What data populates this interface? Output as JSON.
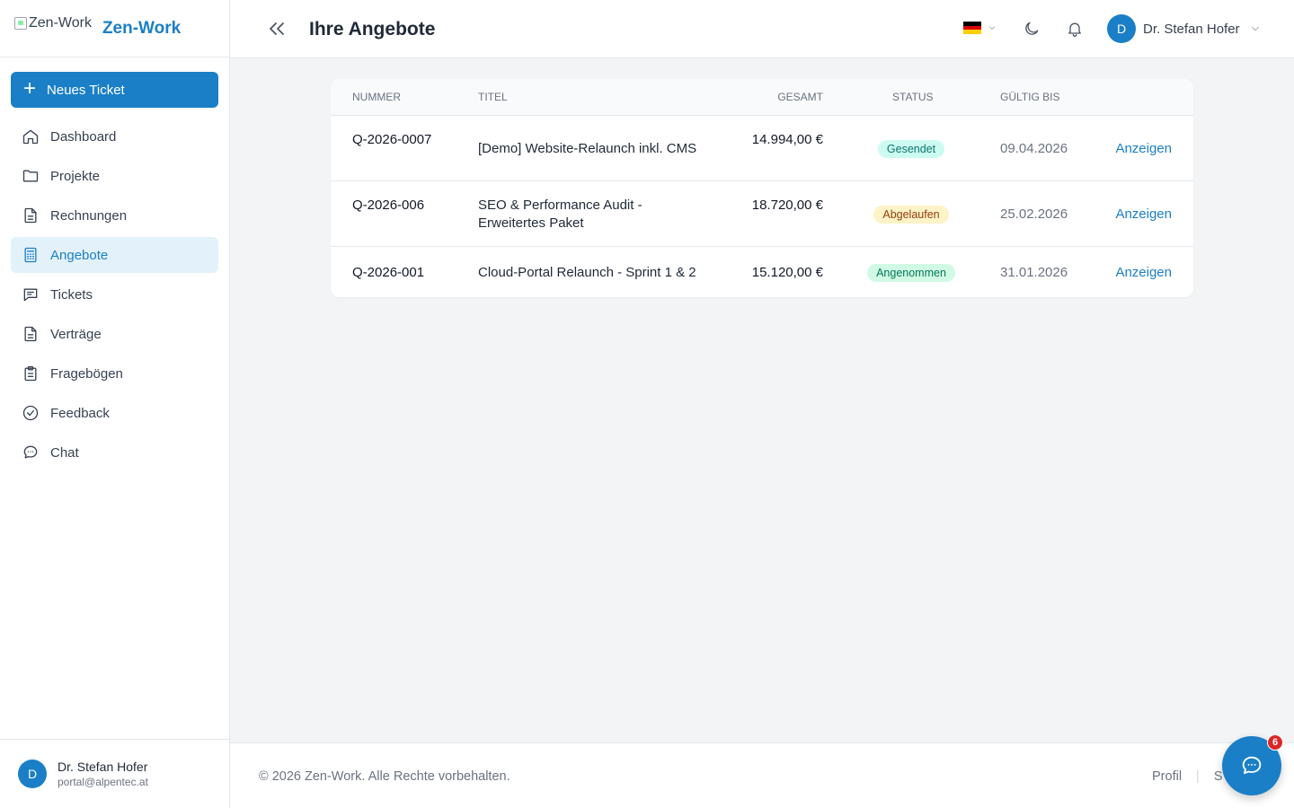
{
  "brand": {
    "img_alt": "Zen-Work",
    "name": "Zen-Work"
  },
  "sidebar": {
    "new_ticket_label": "Neues Ticket",
    "items": [
      {
        "label": "Dashboard",
        "icon": "home-icon"
      },
      {
        "label": "Projekte",
        "icon": "folder-icon"
      },
      {
        "label": "Rechnungen",
        "icon": "document-icon"
      },
      {
        "label": "Angebote",
        "icon": "calculator-icon",
        "active": true
      },
      {
        "label": "Tickets",
        "icon": "message-square-icon"
      },
      {
        "label": "Verträge",
        "icon": "document-icon"
      },
      {
        "label": "Fragebögen",
        "icon": "clipboard-icon"
      },
      {
        "label": "Feedback",
        "icon": "check-circle-icon"
      },
      {
        "label": "Chat",
        "icon": "chat-bubble-icon"
      }
    ],
    "user": {
      "initial": "D",
      "name": "Dr. Stefan Hofer",
      "email": "portal@alpentec.at"
    }
  },
  "header": {
    "title": "Ihre Angebote",
    "language_flag": "de",
    "user": {
      "initial": "D",
      "name": "Dr. Stefan Hofer"
    }
  },
  "table": {
    "columns": [
      "Nummer",
      "Titel",
      "Gesamt",
      "Status",
      "Gültig bis"
    ],
    "rows": [
      {
        "number": "Q-2026-0007",
        "title": "[Demo] Website-Relaunch inkl. CMS",
        "total": "14.994,00 €",
        "status": "Gesendet",
        "valid_until": "09.04.2026",
        "action": "Anzeigen"
      },
      {
        "number": "Q-2026-006",
        "title": "SEO & Performance Audit - Erweitertes Paket",
        "total": "18.720,00 €",
        "status": "Abgelaufen",
        "valid_until": "25.02.2026",
        "action": "Anzeigen"
      },
      {
        "number": "Q-2026-001",
        "title": "Cloud-Portal Relaunch - Sprint 1 & 2",
        "total": "15.120,00 €",
        "status": "Angenommen",
        "valid_until": "31.01.2026",
        "action": "Anzeigen"
      }
    ]
  },
  "footer": {
    "copyright": "© 2026 Zen-Work. Alle Rechte vorbehalten.",
    "links": [
      "Profil",
      "S"
    ]
  },
  "chat": {
    "badge_count": "6"
  },
  "colors": {
    "accent": "#1a7fc7",
    "sent": "#ccfbf1",
    "expired": "#fef3c7",
    "accepted": "#d1fae5"
  }
}
